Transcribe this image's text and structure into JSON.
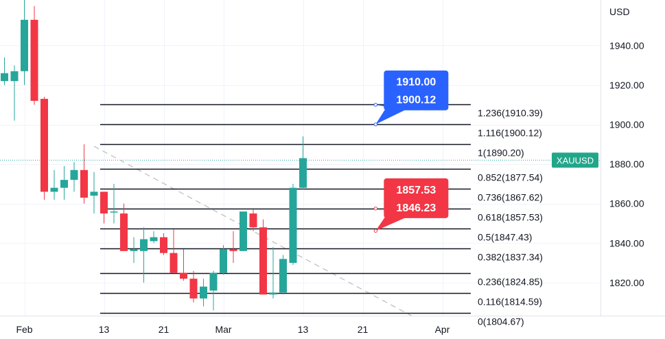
{
  "chart_data": {
    "type": "candlestick",
    "currency": "USD",
    "symbol": "XAUUSD",
    "colors": {
      "up": "#26a69a",
      "down": "#f23645",
      "level_line": "#131722",
      "trend_line": "#c8c8c8",
      "callout_blue": "#2962ff",
      "callout_red": "#f23645",
      "ticker_badge": "#22a68a",
      "price_dotted": "#26a69a"
    },
    "y_axis": {
      "ylim": [
        1802,
        1964
      ],
      "ticks": [
        {
          "value": 1940,
          "label": "1940.00"
        },
        {
          "value": 1920,
          "label": "1920.00"
        },
        {
          "value": 1900,
          "label": "1900.00"
        },
        {
          "value": 1880,
          "label": "1880.00"
        },
        {
          "value": 1860,
          "label": "1860.00"
        },
        {
          "value": 1840,
          "label": "1840.00"
        },
        {
          "value": 1820,
          "label": "1820.00"
        }
      ]
    },
    "x_axis": {
      "ticks": [
        {
          "index": 2,
          "label": "Feb"
        },
        {
          "index": 10,
          "label": "13"
        },
        {
          "index": 16,
          "label": "21"
        },
        {
          "index": 22,
          "label": "Mar"
        },
        {
          "index": 30,
          "label": "13"
        },
        {
          "index": 36,
          "label": "21"
        },
        {
          "index": 44,
          "label": "Apr"
        }
      ]
    },
    "candles": [
      {
        "o": 1922,
        "h": 1934,
        "l": 1920,
        "c": 1926
      },
      {
        "o": 1922,
        "h": 1930,
        "l": 1902,
        "c": 1927
      },
      {
        "o": 1927,
        "h": 1963,
        "l": 1920,
        "c": 1953
      },
      {
        "o": 1953,
        "h": 1960,
        "l": 1910,
        "c": 1912
      },
      {
        "o": 1913,
        "h": 1914,
        "l": 1862,
        "c": 1866
      },
      {
        "o": 1866,
        "h": 1877,
        "l": 1862,
        "c": 1868
      },
      {
        "o": 1868,
        "h": 1879,
        "l": 1862,
        "c": 1872
      },
      {
        "o": 1872,
        "h": 1881,
        "l": 1866,
        "c": 1877
      },
      {
        "o": 1877,
        "h": 1890,
        "l": 1860,
        "c": 1863
      },
      {
        "o": 1864,
        "h": 1876,
        "l": 1855,
        "c": 1866
      },
      {
        "o": 1866,
        "h": 1866,
        "l": 1850,
        "c": 1855
      },
      {
        "o": 1856,
        "h": 1870,
        "l": 1850,
        "c": 1856
      },
      {
        "o": 1855,
        "h": 1860,
        "l": 1836,
        "c": 1836
      },
      {
        "o": 1836,
        "h": 1843,
        "l": 1830,
        "c": 1837
      },
      {
        "o": 1836,
        "h": 1848,
        "l": 1820,
        "c": 1842
      },
      {
        "o": 1841,
        "h": 1846,
        "l": 1840,
        "c": 1843
      },
      {
        "o": 1843,
        "h": 1845,
        "l": 1834,
        "c": 1835
      },
      {
        "o": 1835,
        "h": 1847,
        "l": 1825,
        "c": 1825
      },
      {
        "o": 1825,
        "h": 1837,
        "l": 1821,
        "c": 1822
      },
      {
        "o": 1822,
        "h": 1826,
        "l": 1810,
        "c": 1812
      },
      {
        "o": 1812,
        "h": 1822,
        "l": 1808,
        "c": 1818
      },
      {
        "o": 1816,
        "h": 1826,
        "l": 1806,
        "c": 1825
      },
      {
        "o": 1825,
        "h": 1839,
        "l": 1824,
        "c": 1837
      },
      {
        "o": 1837,
        "h": 1846,
        "l": 1830,
        "c": 1836
      },
      {
        "o": 1836,
        "h": 1856,
        "l": 1836,
        "c": 1856
      },
      {
        "o": 1855,
        "h": 1857,
        "l": 1846,
        "c": 1848
      },
      {
        "o": 1848,
        "h": 1852,
        "l": 1814,
        "c": 1814
      },
      {
        "o": 1814,
        "h": 1838,
        "l": 1812,
        "c": 1815
      },
      {
        "o": 1815,
        "h": 1834,
        "l": 1814,
        "c": 1832
      },
      {
        "o": 1830,
        "h": 1870,
        "l": 1829,
        "c": 1868
      },
      {
        "o": 1868,
        "h": 1894,
        "l": 1867,
        "c": 1883
      }
    ],
    "fib_levels": [
      {
        "ratio": "1.236",
        "value": 1910.39,
        "label": "1.236(1910.39)"
      },
      {
        "ratio": "1.116",
        "value": 1900.12,
        "label": "1.116(1900.12)"
      },
      {
        "ratio": "1",
        "value": 1890.2,
        "label": "1(1890.20)"
      },
      {
        "ratio": "0.852",
        "value": 1877.54,
        "label": "0.852(1877.54)"
      },
      {
        "ratio": "0.736",
        "value": 1867.62,
        "label": "0.736(1867.62)"
      },
      {
        "ratio": "0.618",
        "value": 1857.53,
        "label": "0.618(1857.53)"
      },
      {
        "ratio": "0.5",
        "value": 1847.43,
        "label": "0.5(1847.43)"
      },
      {
        "ratio": "0.382",
        "value": 1837.34,
        "label": "0.382(1837.34)"
      },
      {
        "ratio": "0.236",
        "value": 1824.85,
        "label": "0.236(1824.85)"
      },
      {
        "ratio": "0.116",
        "value": 1814.59,
        "label": "0.116(1814.59)"
      },
      {
        "ratio": "0",
        "value": 1804.67,
        "label": "0(1804.67)"
      }
    ],
    "trend_line": {
      "from": {
        "index": 9,
        "value": 1889
      },
      "to": {
        "index": 41,
        "value": 1803
      }
    },
    "current_price": 1882,
    "callouts": [
      {
        "color": "blue",
        "lines": [
          "1910.00",
          "1900.12"
        ],
        "anchor_values": [
          1910.0,
          1900.12
        ],
        "anchor_index": 37.3
      },
      {
        "color": "red",
        "lines": [
          "1857.53",
          "1846.23"
        ],
        "anchor_values": [
          1857.53,
          1846.23
        ],
        "anchor_index": 37.3
      }
    ]
  }
}
